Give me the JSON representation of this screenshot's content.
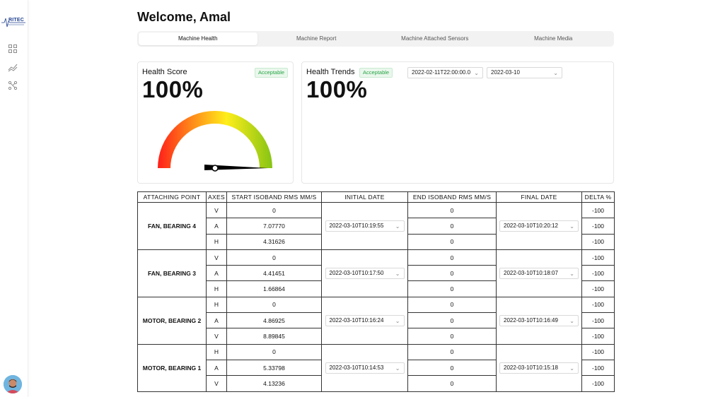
{
  "app": {
    "logo_text": "RITEC",
    "welcome": "Welcome, Amal"
  },
  "sidebar": {
    "icons": [
      "dashboard-icon",
      "chart-icon",
      "sensors-icon"
    ]
  },
  "tabs": [
    {
      "label": "Machine Health",
      "active": true
    },
    {
      "label": "Machine Report",
      "active": false
    },
    {
      "label": "Machine Attached Sensors",
      "active": false
    },
    {
      "label": "Machine Media",
      "active": false
    }
  ],
  "health_score": {
    "title": "Health Score",
    "badge": "Acceptable",
    "value": "100%",
    "gauge_level": 1.0
  },
  "health_trends": {
    "title": "Health Trends",
    "badge": "Acceptable",
    "value": "100%",
    "start_date": "2022-02-11T22:00:00.0",
    "end_date": "2022-03-10"
  },
  "colors": {
    "badge_green": "#27a545",
    "gauge_start": "#ff2a1a",
    "gauge_mid": "#ffe81a",
    "gauge_end": "#8bc514"
  },
  "table": {
    "headers": [
      "ATTACHING POINT",
      "AXES",
      "START ISOBAND RMS MM/S",
      "INITIAL DATE",
      "END ISOBAND RMS MM/S",
      "FINAL DATE",
      "DELTA %"
    ],
    "groups": [
      {
        "point": "FAN, BEARING 4",
        "initial_date": "2022-03-10T10:19:55",
        "final_date": "2022-03-10T10:20:12",
        "rows": [
          {
            "axis": "V",
            "start": "0",
            "end": "0",
            "delta": "-100"
          },
          {
            "axis": "A",
            "start": "7.07770",
            "end": "0",
            "delta": "-100"
          },
          {
            "axis": "H",
            "start": "4.31626",
            "end": "0",
            "delta": "-100"
          }
        ]
      },
      {
        "point": "FAN, BEARING 3",
        "initial_date": "2022-03-10T10:17:50",
        "final_date": "2022-03-10T10:18:07",
        "rows": [
          {
            "axis": "V",
            "start": "0",
            "end": "0",
            "delta": "-100"
          },
          {
            "axis": "A",
            "start": "4.41451",
            "end": "0",
            "delta": "-100"
          },
          {
            "axis": "H",
            "start": "1.66864",
            "end": "0",
            "delta": "-100"
          }
        ]
      },
      {
        "point": "MOTOR, BEARING 2",
        "initial_date": "2022-03-10T10:16:24",
        "final_date": "2022-03-10T10:16:49",
        "rows": [
          {
            "axis": "H",
            "start": "0",
            "end": "0",
            "delta": "-100"
          },
          {
            "axis": "A",
            "start": "4.86925",
            "end": "0",
            "delta": "-100"
          },
          {
            "axis": "V",
            "start": "8.89845",
            "end": "0",
            "delta": "-100"
          }
        ]
      },
      {
        "point": "MOTOR, BEARING 1",
        "initial_date": "2022-03-10T10:14:53",
        "final_date": "2022-03-10T10:15:18",
        "rows": [
          {
            "axis": "H",
            "start": "0",
            "end": "0",
            "delta": "-100"
          },
          {
            "axis": "A",
            "start": "5.33798",
            "end": "0",
            "delta": "-100"
          },
          {
            "axis": "V",
            "start": "4.13236",
            "end": "0",
            "delta": "-100"
          }
        ]
      }
    ]
  }
}
